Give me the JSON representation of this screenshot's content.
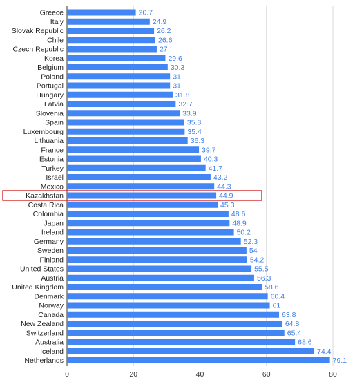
{
  "colors": {
    "bar": "#4285f4",
    "value_label": "#3f7fe8",
    "highlight_box": "#d62728",
    "grid": "#d9d9d9"
  },
  "chart_data": {
    "type": "bar",
    "orientation": "horizontal",
    "title": "",
    "xlabel": "",
    "ylabel": "",
    "xlim": [
      0,
      80
    ],
    "x_ticks": [
      0,
      20,
      40,
      60,
      80
    ],
    "grid": true,
    "legend": "none",
    "highlighted_category": "Kazakhstan",
    "categories": [
      "Greece",
      "Italy",
      "Slovak Republic",
      "Chile",
      "Czech Republic",
      "Korea",
      "Belgium",
      "Poland",
      "Portugal",
      "Hungary",
      "Latvia",
      "Slovenia",
      "Spain",
      "Luxembourg",
      "Lithuania",
      "France",
      "Estonia",
      "Turkey",
      "Israel",
      "Mexico",
      "Kazakhstan",
      "Costa Rica",
      "Colombia",
      "Japan",
      "Ireland",
      "Germany",
      "Sweden",
      "Finland",
      "United States",
      "Austria",
      "United Kingdom",
      "Denmark",
      "Norway",
      "Canada",
      "New Zealand",
      "Switzerland",
      "Australia",
      "Iceland",
      "Netherlands"
    ],
    "values": [
      20.7,
      24.9,
      26.2,
      26.6,
      27,
      29.6,
      30.3,
      31,
      31,
      31.8,
      32.7,
      33.9,
      35.3,
      35.4,
      36.3,
      39.7,
      40.3,
      41.7,
      43.2,
      44.3,
      44.9,
      45.3,
      48.6,
      48.9,
      50.2,
      52.3,
      54,
      54.2,
      55.5,
      56.3,
      58.6,
      60.4,
      61,
      63.8,
      64.8,
      65.4,
      68.6,
      74.4,
      79.1
    ],
    "value_labels": [
      "20.7",
      "24.9",
      "26.2",
      "26.6",
      "27",
      "29.6",
      "30.3",
      "31",
      "31",
      "31.8",
      "32.7",
      "33.9",
      "35.3",
      "35.4",
      "36.3",
      "39.7",
      "40.3",
      "41.7",
      "43.2",
      "44.3",
      "44.9",
      "45.3",
      "48.6",
      "48.9",
      "50.2",
      "52.3",
      "54",
      "54.2",
      "55.5",
      "56.3",
      "58.6",
      "60.4",
      "61",
      "63.8",
      "64.8",
      "65.4",
      "68.6",
      "74.4",
      "79.1"
    ]
  }
}
